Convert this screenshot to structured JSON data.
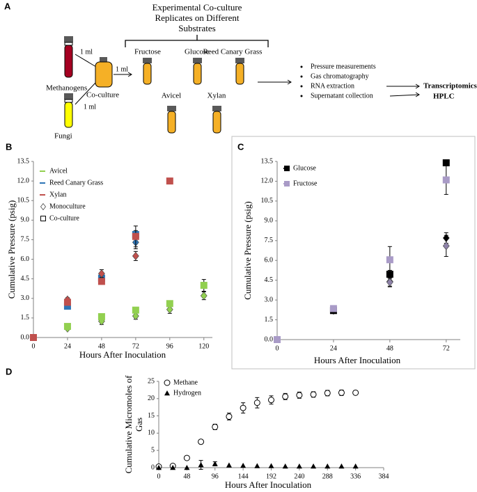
{
  "panel_a": {
    "label": "A",
    "title": [
      "Experimental Co-culture",
      "Replicates on Different",
      "Substrates"
    ],
    "inocula": [
      "Methanogens",
      "Fungi"
    ],
    "transfer_labels": [
      "1 ml",
      "1 ml",
      "1 ml"
    ],
    "coculture": "Co-culture",
    "substrates": [
      "Fructose",
      "Glucose",
      "Reed Canary Grass",
      "Avicel",
      "Xylan"
    ],
    "measurements": [
      "Pressure measurements",
      "Gas chromatography",
      "RNA extraction",
      "Supernatant collection"
    ],
    "outputs": [
      "Transcriptomics",
      "HPLC"
    ]
  },
  "chart_data": [
    {
      "panel": "B",
      "type": "scatter",
      "xlabel": "Hours After Inoculation",
      "ylabel": "Cumulative Pressure (psig)",
      "x": [
        0,
        24,
        48,
        72,
        96,
        120
      ],
      "xlim": [
        0,
        126
      ],
      "xticks": [
        0,
        24,
        48,
        72,
        96,
        120
      ],
      "ylim": [
        0,
        13.5
      ],
      "yticks": [
        {
          "value": 0,
          "label": "0.0"
        },
        {
          "value": 1.5,
          "label": "1.5"
        },
        {
          "value": 3,
          "label": "3.0"
        },
        {
          "value": 4.5,
          "label": "4.5"
        },
        {
          "value": 6,
          "label": "6.0"
        },
        {
          "value": 7.5,
          "label": "7.5"
        },
        {
          "value": 9,
          "label": "9.0"
        },
        {
          "value": 10.5,
          "label": "10.5"
        },
        {
          "value": 12,
          "label": "12.0"
        },
        {
          "value": 13.5,
          "label": "13.5"
        }
      ],
      "legend": [
        {
          "label": "Avicel",
          "color": "#92d050"
        },
        {
          "label": "Reed Canary Grass",
          "color": "#2e75b6"
        },
        {
          "label": "Xylan",
          "color": "#c0504d"
        },
        {
          "label": "Monoculture",
          "marker": "diamond"
        },
        {
          "label": "Co-culture",
          "marker": "square"
        }
      ],
      "series": [
        {
          "color": "#92d050",
          "marker": "diamond",
          "values": [
            null,
            0.7,
            1.25,
            1.65,
            2.15,
            3.2
          ],
          "errors": [
            null,
            0.1,
            0.25,
            0.25,
            0.3,
            0.3
          ]
        },
        {
          "color": "#92d050",
          "marker": "square",
          "values": [
            null,
            0.85,
            1.6,
            2.1,
            2.6,
            4.0
          ],
          "errors": [
            null,
            0.15,
            0.2,
            0.15,
            0.2,
            0.45
          ]
        },
        {
          "color": "#2e75b6",
          "marker": "diamond",
          "values": [
            null,
            2.7,
            4.7,
            7.3,
            null,
            null
          ],
          "errors": [
            null,
            0.15,
            0.2,
            0.5,
            null,
            null
          ]
        },
        {
          "color": "#2e75b6",
          "marker": "square",
          "values": [
            null,
            2.4,
            4.55,
            7.9,
            null,
            null
          ],
          "errors": [
            null,
            0.2,
            0.2,
            0.3,
            null,
            null
          ]
        },
        {
          "color": "#c0504d",
          "marker": "diamond",
          "values": [
            null,
            2.9,
            4.9,
            6.25,
            null,
            null
          ],
          "errors": [
            null,
            0.15,
            0.3,
            0.35,
            null,
            null
          ]
        },
        {
          "color": "#c0504d",
          "marker": "square",
          "values": [
            0,
            2.7,
            4.3,
            7.75,
            12.0,
            null
          ],
          "errors": [
            null,
            0.2,
            0.2,
            0.8,
            null,
            null
          ]
        }
      ]
    },
    {
      "panel": "C",
      "type": "scatter",
      "xlabel": "Hours After Inoculation",
      "ylabel": "Cumulative Pressure (psig)",
      "x": [
        0,
        24,
        48,
        72
      ],
      "xlim": [
        0,
        78
      ],
      "xticks": [
        0,
        24,
        48,
        72
      ],
      "ylim": [
        0,
        13.5
      ],
      "yticks": [
        {
          "value": 0,
          "label": "0.0"
        },
        {
          "value": 1.5,
          "label": "1.5"
        },
        {
          "value": 3,
          "label": "3.0"
        },
        {
          "value": 4.5,
          "label": "4.5"
        },
        {
          "value": 6,
          "label": "6.0"
        },
        {
          "value": 7.5,
          "label": "7.5"
        },
        {
          "value": 9,
          "label": "9.0"
        },
        {
          "value": 10.5,
          "label": "10.5"
        },
        {
          "value": 12,
          "label": "12.0"
        },
        {
          "value": 13.5,
          "label": "13.5"
        }
      ],
      "legend": [
        {
          "label": "Glucose",
          "color": "#000000",
          "marker": "square"
        },
        {
          "label": "Fructose",
          "color": "#a99bc7",
          "marker": "square"
        }
      ],
      "series": [
        {
          "color": "#000000",
          "marker": "diamond",
          "values": [
            null,
            2.2,
            4.4,
            7.7
          ],
          "errors": [
            null,
            0.1,
            0.4,
            0.4
          ]
        },
        {
          "color": "#000000",
          "marker": "square",
          "values": [
            null,
            2.2,
            4.95,
            13.4
          ],
          "errors": [
            null,
            0.1,
            0.3,
            0.2
          ]
        },
        {
          "color": "#8e82a8",
          "marker": "diamond",
          "values": [
            null,
            null,
            4.35,
            7.1
          ],
          "errors": [
            null,
            null,
            0.3,
            0.8
          ]
        },
        {
          "color": "#a99bc7",
          "marker": "square",
          "values": [
            0,
            2.35,
            6.05,
            12.1
          ],
          "errors": [
            null,
            0.1,
            1.0,
            1.1
          ]
        }
      ]
    },
    {
      "panel": "D",
      "type": "scatter",
      "xlabel": "Hours After Inoculation",
      "ylabel": [
        "Cumulative Micromoles of",
        "Gas"
      ],
      "x": [
        0,
        24,
        48,
        72,
        96,
        120,
        144,
        168,
        192,
        216,
        240,
        264,
        288,
        312,
        336
      ],
      "xlim": [
        0,
        384
      ],
      "xticks": [
        0,
        48,
        96,
        144,
        192,
        240,
        288,
        336,
        384
      ],
      "ylim": [
        0,
        25
      ],
      "yticks": [
        0,
        5,
        10,
        15,
        20,
        25
      ],
      "series": [
        {
          "name": "Methane",
          "color": "#000000",
          "marker": "circle-open",
          "values": [
            0.3,
            0.5,
            2.8,
            7.5,
            11.8,
            14.8,
            17.3,
            18.8,
            19.6,
            20.6,
            21.0,
            21.2,
            21.6,
            21.7,
            21.7
          ],
          "errors": [
            null,
            null,
            null,
            null,
            0.8,
            1.0,
            1.5,
            1.5,
            1.2,
            0.9,
            0.9,
            0.8,
            0.8,
            0.8,
            null
          ]
        },
        {
          "name": "Hydrogen",
          "color": "#000000",
          "marker": "triangle",
          "values": [
            0,
            0,
            0,
            0.8,
            1.1,
            0.7,
            0.6,
            0.5,
            0.5,
            0.4,
            0.4,
            0.4,
            0.4,
            0.4,
            0.4
          ],
          "errors": [
            null,
            null,
            null,
            1.3,
            0.6,
            null,
            null,
            null,
            null,
            null,
            null,
            null,
            null,
            null,
            null
          ]
        }
      ]
    }
  ]
}
